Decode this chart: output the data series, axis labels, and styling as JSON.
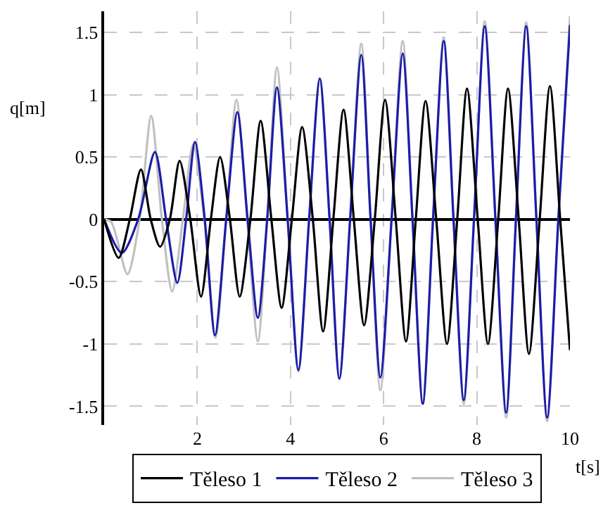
{
  "chart_data": {
    "type": "line",
    "xlabel": "t[s]",
    "ylabel": "q[m]",
    "xlim": [
      0,
      10
    ],
    "xticks": [
      2,
      4,
      6,
      8,
      10
    ],
    "ylim": [
      -1.65,
      1.67
    ],
    "yticks": [
      -1.5,
      -1,
      -0.5,
      0,
      0.5,
      1,
      1.5
    ],
    "grid": true,
    "legend": "bottom",
    "marker": "none",
    "line_style": "solid",
    "series": [
      {
        "name": "Těleso 1",
        "color": "#000000",
        "x": [
          0,
          0.31,
          0.55,
          0.79,
          1.0,
          1.2,
          1.41,
          1.62,
          1.85,
          2.08,
          2.29,
          2.49,
          2.7,
          2.91,
          3.14,
          3.36,
          3.59,
          3.81,
          4.03,
          4.25,
          4.48,
          4.7,
          4.92,
          5.14,
          5.36,
          5.58,
          5.81,
          6.03,
          6.26,
          6.48,
          6.69,
          6.9,
          7.13,
          7.36,
          7.58,
          7.79,
          8.02,
          8.24,
          8.46,
          8.67,
          8.9,
          9.12,
          9.35,
          9.57,
          9.79,
          10
        ],
        "values": [
          0,
          -0.31,
          0,
          0.4,
          0,
          -0.22,
          0,
          0.47,
          0,
          -0.62,
          0,
          0.5,
          0,
          -0.62,
          0,
          0.79,
          0,
          -0.71,
          0,
          0.74,
          0,
          -0.9,
          0,
          0.88,
          0,
          -0.85,
          0,
          0.96,
          0,
          -0.98,
          0,
          0.95,
          0,
          -1.0,
          0,
          1.05,
          0,
          -1.0,
          0,
          1.05,
          0,
          -1.08,
          0,
          1.07,
          0,
          -1.05
        ]
      },
      {
        "name": "Těleso 2",
        "color": "#1c1ca8",
        "x": [
          0,
          0.38,
          0.73,
          1.09,
          1.33,
          1.57,
          1.76,
          1.95,
          2.16,
          2.38,
          2.62,
          2.86,
          3.08,
          3.3,
          3.5,
          3.71,
          3.94,
          4.17,
          4.4,
          4.63,
          4.84,
          5.05,
          5.28,
          5.52,
          5.72,
          5.93,
          6.17,
          6.41,
          6.62,
          6.84,
          7.06,
          7.29,
          7.5,
          7.72,
          7.94,
          8.17,
          8.4,
          8.63,
          8.84,
          9.06,
          9.28,
          9.51,
          9.75,
          10
        ],
        "values": [
          0,
          -0.27,
          0,
          0.54,
          0,
          -0.51,
          0,
          0.62,
          0,
          -0.93,
          0,
          0.86,
          0,
          -0.79,
          0,
          1.06,
          0,
          -1.21,
          0,
          1.13,
          0,
          -1.28,
          0,
          1.32,
          0,
          -1.27,
          0,
          1.33,
          0,
          -1.48,
          0,
          1.43,
          0,
          -1.45,
          0,
          1.55,
          0,
          -1.55,
          0,
          1.55,
          0,
          -1.59,
          0,
          1.56
        ]
      },
      {
        "name": "Těleso 3",
        "color": "#c0c0c0",
        "x": [
          0,
          0.15,
          0.5,
          0.76,
          1.01,
          1.24,
          1.46,
          1.69,
          1.91,
          2.15,
          2.39,
          2.62,
          2.84,
          3.07,
          3.3,
          3.5,
          3.71,
          3.94,
          4.17,
          4.4,
          4.63,
          4.84,
          5.05,
          5.28,
          5.52,
          5.72,
          5.93,
          6.17,
          6.41,
          6.62,
          6.84,
          7.06,
          7.29,
          7.5,
          7.72,
          7.94,
          8.17,
          8.4,
          8.63,
          8.84,
          9.06,
          9.28,
          9.51,
          9.75,
          10
        ],
        "values": [
          0,
          -0.02,
          -0.44,
          0,
          0.83,
          0,
          -0.58,
          0,
          0.6,
          0,
          -0.95,
          0,
          0.96,
          0,
          -0.98,
          0,
          1.22,
          0,
          -1.22,
          0,
          1.13,
          0,
          -1.28,
          0,
          1.41,
          0,
          -1.37,
          0,
          1.43,
          0,
          -1.48,
          0,
          1.46,
          0,
          -1.48,
          0,
          1.59,
          0,
          -1.59,
          0,
          1.58,
          0,
          -1.62,
          0,
          1.63
        ]
      }
    ]
  }
}
